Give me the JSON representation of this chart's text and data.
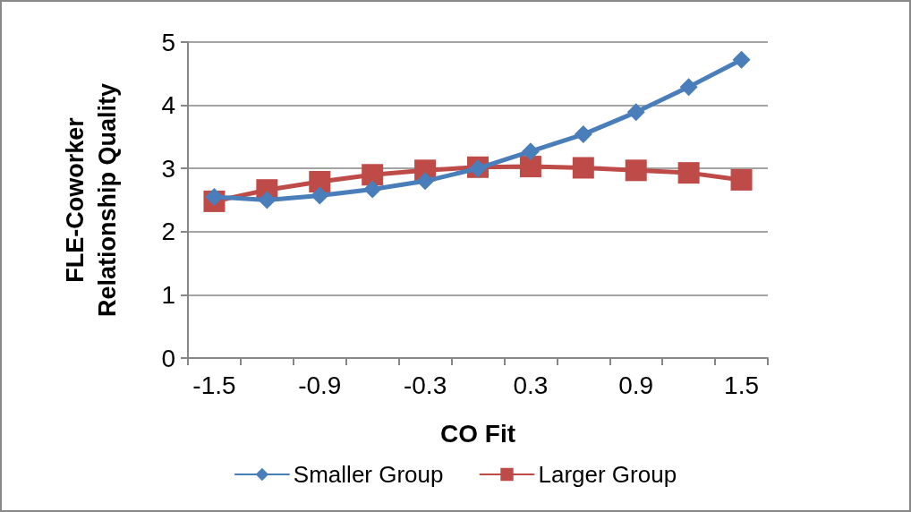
{
  "chart_data": {
    "type": "line",
    "xlabel": "CO Fit",
    "ylabel": "FLE-Coworker Relationship Quality",
    "categories": [
      "-1.5",
      null,
      "-0.9",
      null,
      "-0.3",
      null,
      "0.3",
      null,
      "0.9",
      null,
      "1.5"
    ],
    "series": [
      {
        "name": "Smaller Group",
        "color": "#4a7ebb",
        "marker": "diamond",
        "values": [
          2.55,
          2.5,
          2.57,
          2.67,
          2.8,
          3.0,
          3.27,
          3.54,
          3.89,
          4.29,
          4.72
        ]
      },
      {
        "name": "Larger Group",
        "color": "#be4b48",
        "marker": "square",
        "values": [
          2.48,
          2.66,
          2.79,
          2.9,
          2.97,
          3.02,
          3.03,
          3.01,
          2.97,
          2.93,
          2.82
        ]
      }
    ],
    "ylim": [
      0,
      5
    ],
    "yticks": [
      0,
      1,
      2,
      3,
      4,
      5
    ],
    "grid": "y",
    "legend": "bottom",
    "line_style": "solid"
  }
}
